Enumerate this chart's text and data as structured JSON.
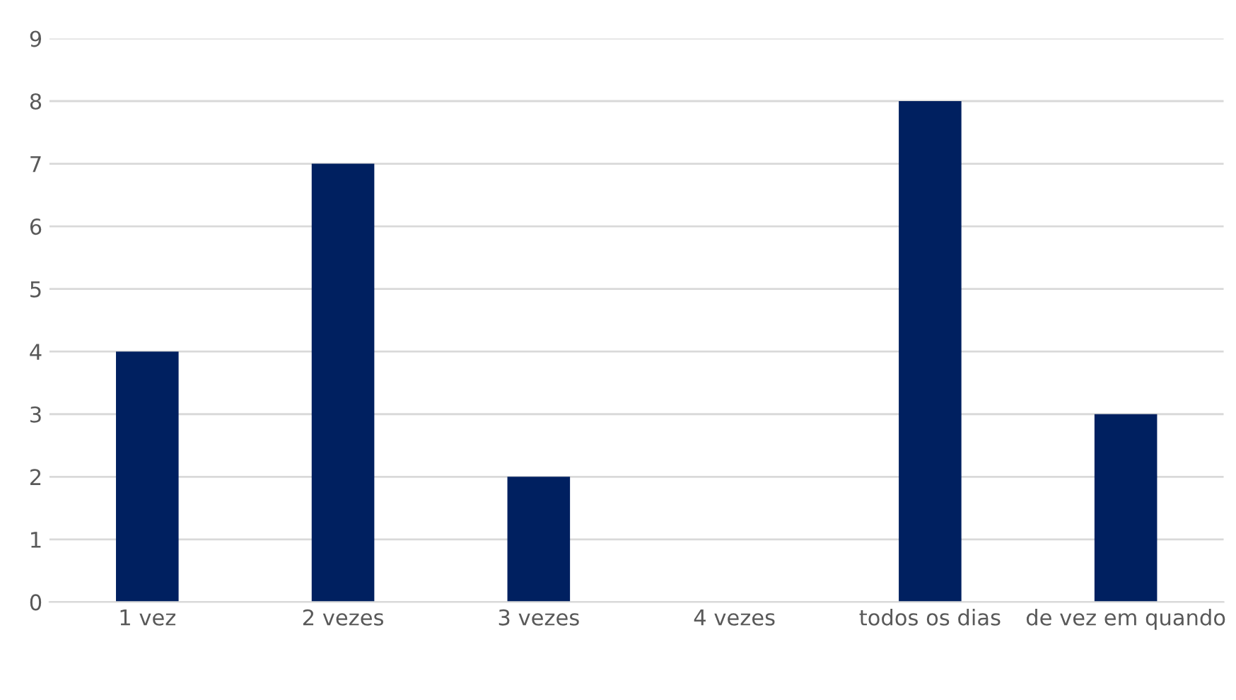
{
  "chart_data": {
    "type": "bar",
    "categories": [
      "1 vez",
      "2 vezes",
      "3 vezes",
      "4 vezes",
      "todos os dias",
      "de vez em quando"
    ],
    "values": [
      4,
      7,
      2,
      0,
      8,
      3
    ],
    "color": "#002060",
    "ylim": [
      0,
      9
    ],
    "yticks": [
      0,
      1,
      2,
      3,
      4,
      5,
      6,
      7,
      8,
      9
    ],
    "grid": "y",
    "legend": false
  }
}
